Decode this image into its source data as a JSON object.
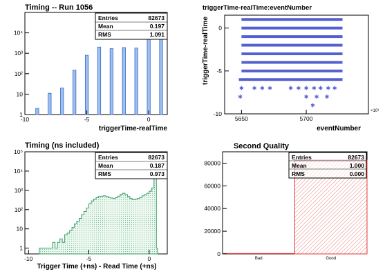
{
  "colors": {
    "blue_fill": "#9ec0ee",
    "blue_line": "#3366cc",
    "marker": "#5560d0",
    "green_line": "#3a9c6b",
    "green_fill": "#d3eedd",
    "red_line": "#e23a3a",
    "red_hatch": "#e88080"
  },
  "chart_data": [
    {
      "id": "p1",
      "type": "bar",
      "title": "Timing -- Run 1056",
      "xlabel": "triggerTime-realTime",
      "ylabel": "",
      "log_y": true,
      "xlim": [
        -10,
        1.5
      ],
      "ylim": [
        1,
        100000
      ],
      "x_ticks": [
        {
          "v": -10,
          "l": "-10"
        },
        {
          "v": -5,
          "l": "-5"
        },
        {
          "v": 0,
          "l": "0"
        }
      ],
      "y_ticks": [
        {
          "v": 1,
          "l": "1"
        },
        {
          "v": 10,
          "l": "10"
        },
        {
          "v": 100,
          "l": "10²"
        },
        {
          "v": 1000,
          "l": "10³"
        },
        {
          "v": 10000,
          "l": "10⁴"
        }
      ],
      "bins": [
        {
          "x": -9,
          "y": 2
        },
        {
          "x": -8,
          "y": 11
        },
        {
          "x": -7,
          "y": 20
        },
        {
          "x": -6,
          "y": 150
        },
        {
          "x": -5,
          "y": 800
        },
        {
          "x": -4,
          "y": 2000
        },
        {
          "x": -3,
          "y": 1700
        },
        {
          "x": -2,
          "y": 1900
        },
        {
          "x": -1,
          "y": 1800
        },
        {
          "x": 0,
          "y": 30000
        },
        {
          "x": 1,
          "y": 40000
        }
      ],
      "stats": [
        {
          "label": "Entries",
          "value": "82673"
        },
        {
          "label": "Mean",
          "value": "0.197"
        },
        {
          "label": "RMS",
          "value": "1.091"
        }
      ]
    },
    {
      "id": "p2",
      "type": "scatter",
      "title": "triggerTime-realTime:eventNumber",
      "xlabel": "eventNumber",
      "ylabel": "triggerTime-realTime",
      "x_multiplier": "×10³",
      "xlim": [
        5637,
        5748
      ],
      "ylim": [
        -10,
        1.5
      ],
      "x_ticks": [
        {
          "v": 5650,
          "l": "5650"
        },
        {
          "v": 5700,
          "l": "5700"
        }
      ],
      "y_ticks": [
        {
          "v": -10,
          "l": "-10"
        },
        {
          "v": -5,
          "l": "-5"
        },
        {
          "v": 0,
          "l": "0"
        }
      ],
      "dense_rows": [
        {
          "y": 1,
          "x_start": 5650,
          "x_end": 5728
        },
        {
          "y": 0,
          "x_start": 5650,
          "x_end": 5728
        },
        {
          "y": -1,
          "x_start": 5650,
          "x_end": 5728
        },
        {
          "y": -2,
          "x_start": 5650,
          "x_end": 5728
        },
        {
          "y": -3,
          "x_start": 5650,
          "x_end": 5728
        },
        {
          "y": -4,
          "x_start": 5650,
          "x_end": 5728
        },
        {
          "y": -5,
          "x_start": 5650,
          "x_end": 5728
        },
        {
          "y": -6,
          "x_start": 5648,
          "x_end": 5728
        }
      ],
      "sparse_points": [
        {
          "x": 5650,
          "y": -7
        },
        {
          "x": 5660,
          "y": -7
        },
        {
          "x": 5666,
          "y": -7
        },
        {
          "x": 5672,
          "y": -7
        },
        {
          "x": 5688,
          "y": -7
        },
        {
          "x": 5694,
          "y": -7
        },
        {
          "x": 5700,
          "y": -7
        },
        {
          "x": 5706,
          "y": -7
        },
        {
          "x": 5711,
          "y": -7
        },
        {
          "x": 5717,
          "y": -7
        },
        {
          "x": 5722,
          "y": -7
        },
        {
          "x": 5649,
          "y": -8
        },
        {
          "x": 5700,
          "y": -8
        },
        {
          "x": 5708,
          "y": -8
        },
        {
          "x": 5716,
          "y": -8
        },
        {
          "x": 5705,
          "y": -9
        }
      ]
    },
    {
      "id": "p3",
      "type": "area",
      "title": "Timing (ns included)",
      "xlabel": "Trigger Time (+ns) - Read Time (+ns)",
      "ylabel": "",
      "log_y": true,
      "xlim": [
        -10.3,
        1.5
      ],
      "ylim": [
        0.5,
        100000
      ],
      "x_ticks": [
        {
          "v": -10,
          "l": "-10"
        },
        {
          "v": -5,
          "l": "-5"
        },
        {
          "v": 0,
          "l": "0"
        }
      ],
      "y_ticks": [
        {
          "v": 1,
          "l": "1"
        },
        {
          "v": 10,
          "l": "10"
        },
        {
          "v": 100,
          "l": "10²"
        },
        {
          "v": 1000,
          "l": "10³"
        },
        {
          "v": 10000,
          "l": "10⁴"
        },
        {
          "v": 100000,
          "l": "10⁵"
        }
      ],
      "x": [
        -9.1,
        -8.8,
        -8.5,
        -8.2,
        -8.0,
        -7.8,
        -7.6,
        -7.4,
        -7.2,
        -7.0,
        -6.8,
        -6.6,
        -6.4,
        -6.2,
        -6.0,
        -5.8,
        -5.6,
        -5.4,
        -5.2,
        -5.0,
        -4.8,
        -4.6,
        -4.4,
        -4.2,
        -4.0,
        -3.8,
        -3.6,
        -3.4,
        -3.2,
        -3.0,
        -2.8,
        -2.6,
        -2.4,
        -2.2,
        -2.0,
        -1.8,
        -1.6,
        -1.4,
        -1.2,
        -1.0,
        -0.8,
        -0.6,
        -0.4,
        -0.2,
        0.0,
        0.2,
        0.4,
        0.5,
        0.6
      ],
      "y": [
        1,
        1,
        1,
        1,
        2,
        1,
        2,
        3,
        2,
        5,
        6,
        8,
        12,
        18,
        25,
        35,
        55,
        80,
        120,
        200,
        280,
        350,
        420,
        480,
        500,
        520,
        480,
        430,
        400,
        380,
        420,
        500,
        620,
        700,
        600,
        480,
        380,
        330,
        350,
        380,
        420,
        520,
        600,
        700,
        900,
        1300,
        4000,
        60000,
        1
      ],
      "stats": [
        {
          "label": "Entries",
          "value": "82673"
        },
        {
          "label": "Mean",
          "value": "0.187"
        },
        {
          "label": "RMS",
          "value": "0.973"
        }
      ]
    },
    {
      "id": "p4",
      "type": "bar",
      "title": "Second Quality",
      "xlabel": "",
      "ylabel": "",
      "categories": [
        "Bad",
        "Good"
      ],
      "values": [
        0,
        82673
      ],
      "ylim": [
        0,
        90000
      ],
      "y_ticks": [
        {
          "v": 0,
          "l": "0"
        },
        {
          "v": 20000,
          "l": "20000"
        },
        {
          "v": 40000,
          "l": "40000"
        },
        {
          "v": 60000,
          "l": "60000"
        },
        {
          "v": 80000,
          "l": "80000"
        }
      ],
      "stats": [
        {
          "label": "Entries",
          "value": "82673"
        },
        {
          "label": "Mean",
          "value": "1.000"
        },
        {
          "label": "RMS",
          "value": "0.000"
        }
      ]
    }
  ]
}
